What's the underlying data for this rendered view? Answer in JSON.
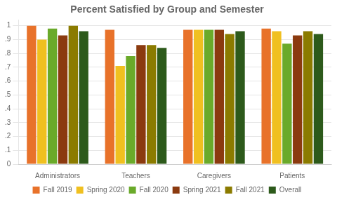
{
  "chart_data": {
    "type": "bar",
    "title": "Percent Satisfied by Group and Semester",
    "categories": [
      "Administrators",
      "Teachers",
      "Caregivers",
      "Patients"
    ],
    "series": [
      {
        "name": "Fall 2019",
        "color": "#E8722A",
        "values": [
          1.0,
          0.97,
          0.97,
          0.98
        ]
      },
      {
        "name": "Spring 2020",
        "color": "#F0C020",
        "values": [
          0.9,
          0.71,
          0.97,
          0.96
        ]
      },
      {
        "name": "Fall 2020",
        "color": "#6aaa2a",
        "values": [
          0.98,
          0.78,
          0.97,
          0.87
        ]
      },
      {
        "name": "Spring 2021",
        "color": "#8B3A0F",
        "values": [
          0.93,
          0.86,
          0.97,
          0.93
        ]
      },
      {
        "name": "Fall 2021",
        "color": "#8B7B00",
        "values": [
          1.0,
          0.86,
          0.94,
          0.96
        ]
      },
      {
        "name": "Overall",
        "color": "#2d5a1b",
        "values": [
          0.96,
          0.84,
          0.96,
          0.94
        ]
      }
    ],
    "ylim": [
      0,
      1.04
    ],
    "yticks": [
      0,
      {
        "value": 0.1,
        "label": ".1"
      },
      {
        "value": 0.2,
        "label": ".2"
      },
      {
        "value": 0.3,
        "label": ".3"
      },
      {
        "value": 0.4,
        "label": ".4"
      },
      {
        "value": 0.5,
        "label": ".5"
      },
      {
        "value": 0.6,
        "label": ".6"
      },
      {
        "value": 0.7,
        "label": ".7"
      },
      {
        "value": 0.8,
        "label": ".8"
      },
      {
        "value": 0.9,
        "label": ".9"
      },
      1
    ],
    "grid": true,
    "legend": "bottom"
  }
}
